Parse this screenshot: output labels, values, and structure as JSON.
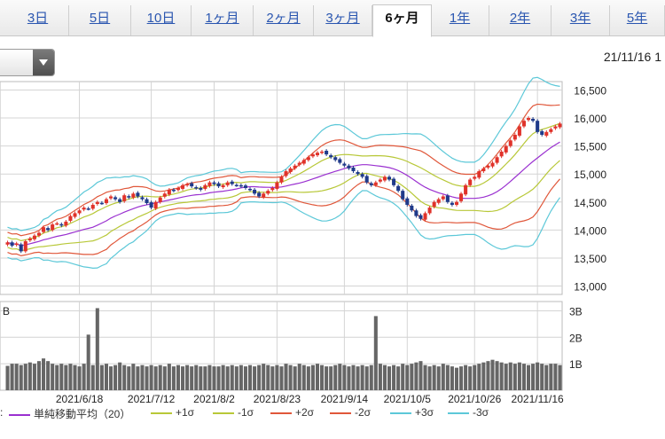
{
  "tabs": [
    {
      "label": "3日",
      "active": false
    },
    {
      "label": "5日",
      "active": false
    },
    {
      "label": "10日",
      "active": false
    },
    {
      "label": "1ヶ月",
      "active": false
    },
    {
      "label": "2ヶ月",
      "active": false
    },
    {
      "label": "3ヶ月",
      "active": false
    },
    {
      "label": "6ヶ月",
      "active": true
    },
    {
      "label": "1年",
      "active": false
    },
    {
      "label": "2年",
      "active": false
    },
    {
      "label": "3年",
      "active": false
    },
    {
      "label": "5年",
      "active": false
    }
  ],
  "dropdown": {
    "value": ""
  },
  "current_date": "21/11/16 1",
  "chart_data": {
    "type": "candlestick",
    "price_axis": {
      "ticks": [
        13000,
        13500,
        14000,
        14500,
        15000,
        15500,
        16000,
        16500
      ],
      "tick_labels": [
        "13,000",
        "13,500",
        "14,000",
        "14,500",
        "15,000",
        "15,500",
        "16,000",
        "16,500"
      ],
      "range": [
        12850,
        16650
      ]
    },
    "volume_axis": {
      "ticks": [
        1,
        2,
        3
      ],
      "tick_labels": [
        "1B",
        "2B",
        "3B"
      ],
      "range": [
        0,
        3.35
      ],
      "top_label": "B"
    },
    "x_labels": [
      "2021/6/18",
      "2021/7/12",
      "2021/8/2",
      "2021/8/23",
      "2021/9/14",
      "2021/10/5",
      "2021/10/26",
      "2021/11/16"
    ],
    "x_label_positions": [
      16,
      32,
      46,
      60,
      75,
      89,
      104,
      118
    ],
    "close": [
      13780,
      13720,
      13760,
      13620,
      13800,
      13850,
      13900,
      13950,
      14050,
      14000,
      14100,
      14120,
      14080,
      14150,
      14250,
      14300,
      14350,
      14400,
      14380,
      14450,
      14500,
      14480,
      14550,
      14600,
      14550,
      14500,
      14620,
      14580,
      14650,
      14600,
      14550,
      14480,
      14400,
      14500,
      14580,
      14650,
      14720,
      14700,
      14750,
      14800,
      14820,
      14780,
      14750,
      14720,
      14800,
      14850,
      14820,
      14780,
      14800,
      14850,
      14820,
      14800,
      14780,
      14750,
      14720,
      14650,
      14600,
      14650,
      14700,
      14750,
      14850,
      14950,
      15050,
      15100,
      15150,
      15200,
      15250,
      15300,
      15350,
      15380,
      15400,
      15350,
      15300,
      15250,
      15200,
      15150,
      15100,
      15050,
      15000,
      14950,
      14850,
      14800,
      14850,
      14900,
      14950,
      14900,
      14800,
      14700,
      14550,
      14450,
      14350,
      14250,
      14200,
      14300,
      14400,
      14500,
      14550,
      14600,
      14500,
      14450,
      14500,
      14650,
      14800,
      14900,
      14950,
      15050,
      15100,
      15150,
      15200,
      15300,
      15400,
      15500,
      15600,
      15700,
      15850,
      15950,
      16000,
      15950,
      15750,
      15700,
      15750,
      15800,
      15850,
      15900
    ],
    "volume": [
      0.92,
      1.0,
      1.0,
      0.95,
      1.0,
      1.05,
      1.0,
      1.1,
      1.2,
      1.1,
      1.0,
      0.95,
      1.0,
      0.95,
      1.0,
      0.95,
      0.9,
      1.0,
      2.1,
      0.95,
      3.1,
      0.95,
      1.0,
      0.9,
      0.95,
      1.05,
      0.95,
      0.9,
      1.0,
      0.9,
      0.95,
      0.9,
      0.95,
      0.9,
      0.95,
      0.9,
      1.0,
      0.9,
      0.95,
      0.9,
      0.95,
      0.9,
      0.95,
      0.9,
      0.9,
      0.95,
      0.9,
      0.9,
      0.95,
      0.9,
      0.95,
      0.9,
      0.95,
      0.9,
      0.95,
      0.9,
      0.95,
      1.0,
      0.95,
      0.9,
      0.95,
      0.9,
      1.0,
      0.95,
      0.9,
      1.0,
      0.95,
      0.9,
      0.95,
      1.0,
      0.95,
      0.9,
      0.9,
      0.95,
      1.0,
      0.95,
      0.9,
      0.95,
      0.9,
      0.95,
      0.9,
      0.95,
      2.8,
      1.0,
      0.95,
      0.9,
      0.95,
      0.9,
      1.0,
      0.95,
      1.0,
      1.05,
      1.1,
      0.95,
      0.9,
      0.95,
      0.9,
      1.0,
      0.95,
      0.9,
      0.85,
      0.9,
      0.95,
      0.9,
      0.95,
      1.0,
      1.05,
      1.1,
      1.15,
      1.1,
      1.05,
      1.0,
      1.05,
      1.0,
      1.05,
      1.0,
      0.95,
      1.0,
      1.05,
      1.0,
      0.95,
      1.0,
      1.0,
      0.95
    ],
    "colors": {
      "up": "#e0322a",
      "down": "#1f3a8a",
      "ma": "#9a30d0",
      "s1": "#b8c838",
      "s2": "#e0573a",
      "s3": "#5cc8d8"
    }
  },
  "legend": [
    {
      "label": "単純移動平均（20）",
      "color": "#9a30d0"
    },
    {
      "label": "+1σ",
      "color": "#b8c838"
    },
    {
      "label": "-1σ",
      "color": "#b8c838"
    },
    {
      "label": "+2σ",
      "color": "#e0573a"
    },
    {
      "label": "-2σ",
      "color": "#e0573a"
    },
    {
      "label": "+3σ",
      "color": "#5cc8d8"
    },
    {
      "label": "-3σ",
      "color": "#5cc8d8"
    }
  ],
  "legend_prefix": ":"
}
